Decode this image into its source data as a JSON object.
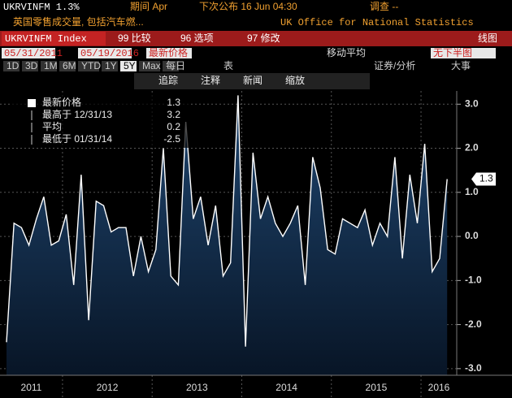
{
  "header": {
    "ticker": "UKRVINFM 1.3%",
    "period": "期间 Apr",
    "next_release": "下次公布 16 Jun 04:30",
    "survey": "调查 --",
    "description": "英国零售成交量, 包括汽车燃...",
    "source": "UK Office for National Statistics"
  },
  "menu": {
    "security": "UKRVINFM Index",
    "items": [
      "99 比较",
      "96 选项",
      "97 修改"
    ],
    "chart_type": "线图"
  },
  "settings": {
    "start": "05/31/2011",
    "end": "05/19/2016",
    "field": "最新价格",
    "moving_average": "移动平均",
    "lower": "无下半图"
  },
  "periods": [
    "1D",
    "3D",
    "1M",
    "6M",
    "YTD",
    "1Y",
    "5Y",
    "Max",
    "每日"
  ],
  "tools": {
    "table": "表",
    "analysis": "证券/分析",
    "events": "大事"
  },
  "toolbar": [
    "追踪",
    "注释",
    "新闻",
    "缩放"
  ],
  "chart_data": {
    "type": "area",
    "legend": [
      {
        "name": "最新价格",
        "value": "1.3"
      },
      {
        "name": "最高于 12/31/13",
        "value": "3.2"
      },
      {
        "name": "平均",
        "value": "0.2"
      },
      {
        "name": "最低于 01/31/14",
        "value": "-2.5"
      }
    ],
    "x_labels": [
      "2011",
      "2012",
      "2013",
      "2014",
      "2015",
      "2016"
    ],
    "color": "#ffffff",
    "values": [
      -2.4,
      0.3,
      0.2,
      -0.2,
      0.4,
      0.9,
      -0.2,
      -0.1,
      0.5,
      -1.1,
      1.4,
      -1.9,
      0.8,
      0.7,
      0.1,
      0.2,
      0.2,
      -0.9,
      0.0,
      -0.8,
      -0.3,
      2.0,
      -0.9,
      -1.1,
      2.6,
      0.4,
      0.9,
      -0.2,
      0.7,
      -0.9,
      -0.6,
      3.2,
      -2.5,
      1.9,
      0.4,
      0.9,
      0.3,
      0.0,
      0.3,
      0.7,
      -1.1,
      1.8,
      1.1,
      -0.3,
      -0.4,
      0.4,
      0.3,
      0.2,
      0.6,
      -0.2,
      0.3,
      0.0,
      1.8,
      -0.5,
      1.4,
      0.3,
      2.1,
      -0.8,
      -0.5,
      1.3
    ],
    "ylim": [
      -3.15,
      3.3
    ],
    "yticks": [
      {
        "value": 3,
        "label": "3.0"
      },
      {
        "value": 2,
        "label": "2.0"
      },
      {
        "value": 1,
        "label": "1.0"
      },
      {
        "value": 0,
        "label": "0.0"
      },
      {
        "value": -1,
        "label": "-1.0"
      },
      {
        "value": -2,
        "label": "-2.0"
      },
      {
        "value": -3,
        "label": "-3.0"
      }
    ],
    "grid": true
  }
}
